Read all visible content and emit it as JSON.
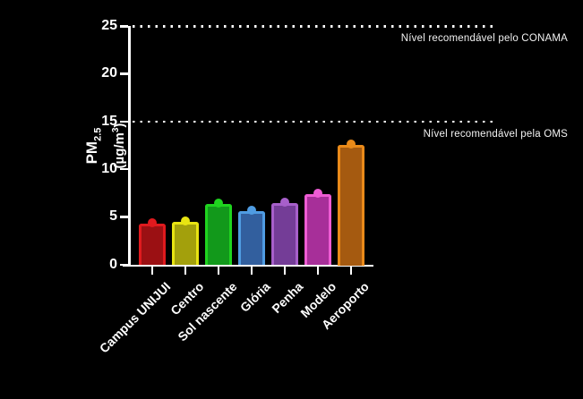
{
  "chart_data": {
    "type": "bar",
    "title": "",
    "categories": [
      "Campus UNIJUI",
      "Centro",
      "Sol nascente",
      "Glória",
      "Penha",
      "Modelo",
      "Aeroporto"
    ],
    "values": [
      4.3,
      4.5,
      6.3,
      5.6,
      6.4,
      7.4,
      12.5
    ],
    "bar_fill_colors": [
      "#9b1013",
      "#a3a00c",
      "#12991b",
      "#325f9e",
      "#743d97",
      "#a72f99",
      "#a55a10"
    ],
    "bar_border_colors": [
      "#e01a1e",
      "#e8e412",
      "#1fd41f",
      "#4f9ce2",
      "#a75fca",
      "#ee5cd4",
      "#ea8a19"
    ],
    "xlabel": "",
    "ylabel": "PM2.5 (µg/m³)",
    "ylabel_parts": {
      "main": "PM",
      "sub": "2.5",
      "unit_pre": "(µg/m",
      "unit_sup": "3",
      "unit_post": ")"
    },
    "yticks": [
      0,
      5,
      10,
      15,
      20,
      25
    ],
    "ylim": [
      0,
      25
    ],
    "grid": false,
    "legend": false,
    "background_color": "#000000",
    "axis_color": "#ffffff",
    "reference_lines": [
      {
        "value": 25,
        "label": "Nível recomendável pelo CONAMA",
        "style": "dotted",
        "color": "#ffffff"
      },
      {
        "value": 15,
        "label": "Nível recomendável pela OMS",
        "style": "dotted",
        "color": "#ffffff"
      }
    ]
  }
}
